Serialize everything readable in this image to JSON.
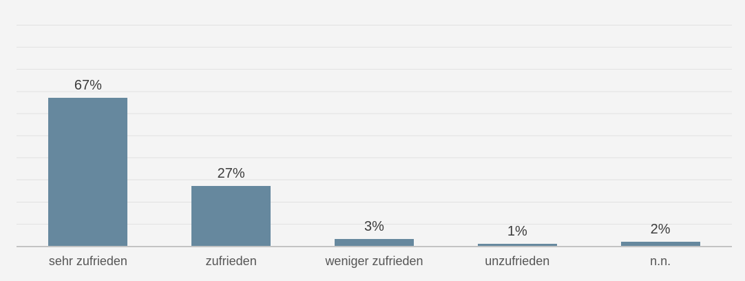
{
  "chart_data": {
    "type": "bar",
    "categories": [
      "sehr zufrieden",
      "zufrieden",
      "weniger zufrieden",
      "unzufrieden",
      "n.n."
    ],
    "values": [
      67,
      27,
      3,
      1,
      2
    ],
    "value_labels": [
      "67%",
      "27%",
      "3%",
      "1%",
      "2%"
    ],
    "title": "",
    "xlabel": "",
    "ylabel": "",
    "ylim": [
      0,
      100
    ],
    "gridlines": "horizontal every 10%, no tick labels",
    "legend_position": "none",
    "colors": {
      "bar": "#66889e",
      "background": "#f4f4f4",
      "gridline": "#e1e1e1",
      "axis_line": "#c3c3c3",
      "value_label_text": "#3b3b3b",
      "category_label_text": "#555555"
    }
  }
}
